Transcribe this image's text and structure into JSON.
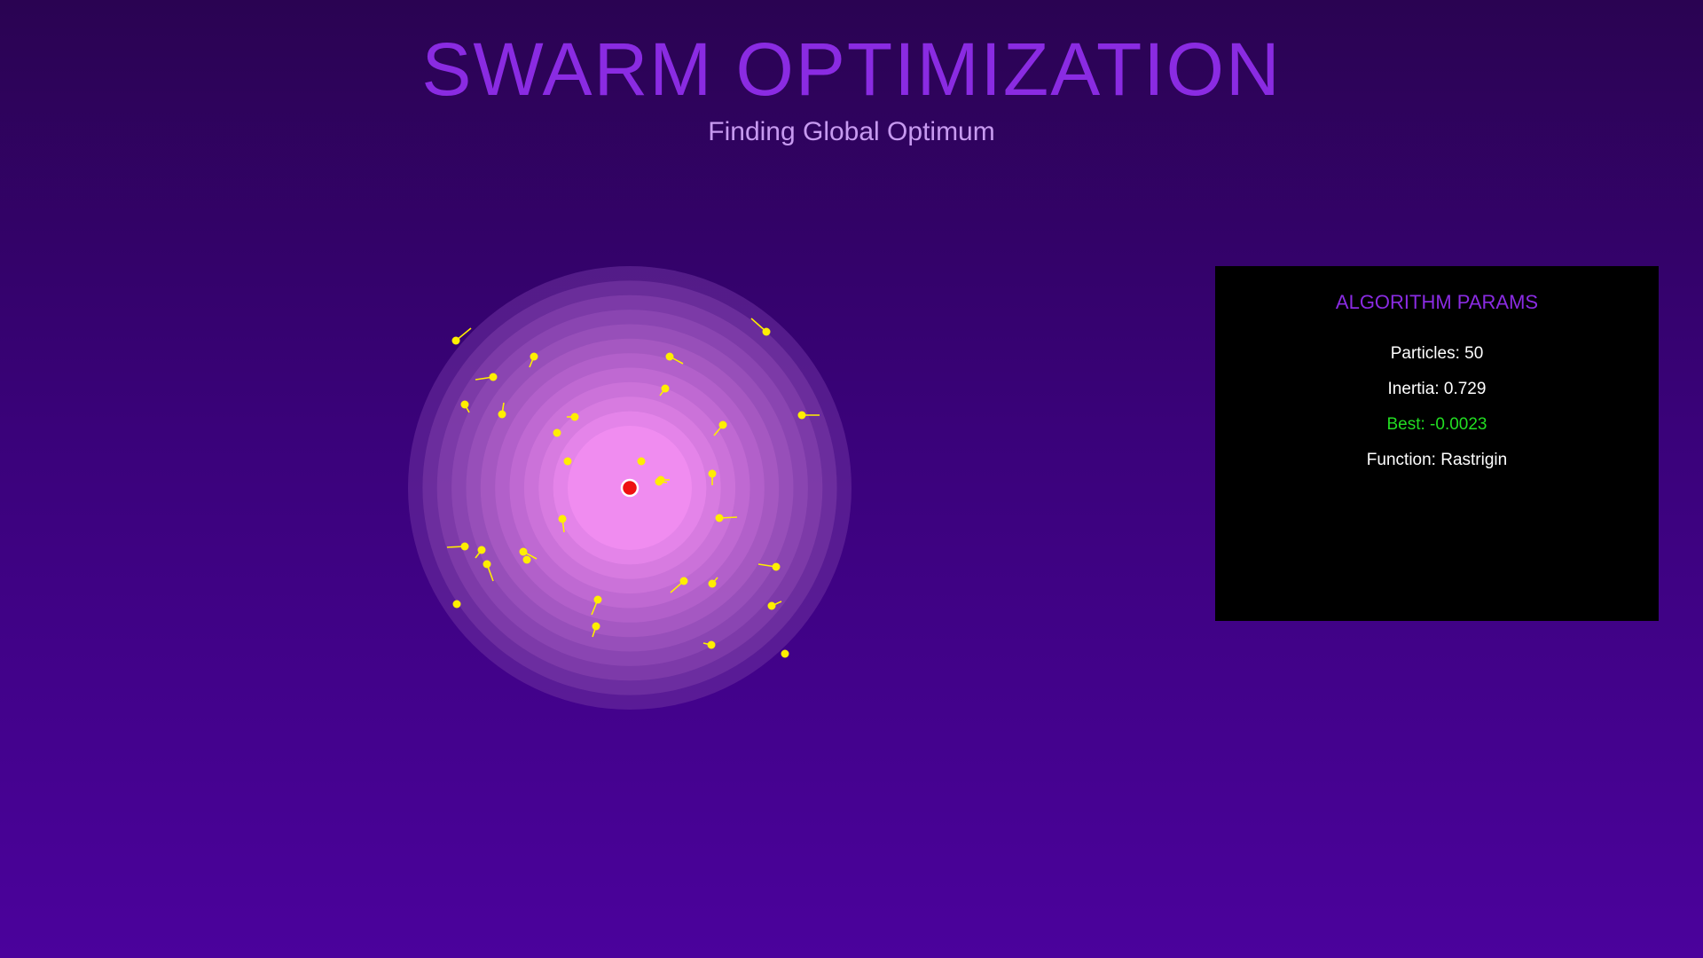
{
  "header": {
    "title": "SWARM OPTIMIZATION",
    "subtitle": "Finding Global Optimum"
  },
  "params_panel": {
    "title": "ALGORITHM PARAMS",
    "particles": "Particles: 50",
    "inertia": "Inertia: 0.729",
    "best": "Best: -0.0023",
    "function": "Function: Rastrigin"
  },
  "colors": {
    "title": "#8a2be2",
    "subtitle": "#c79af0",
    "particle": "#ffee00",
    "global_best": "#ee1111",
    "best_text": "#22dd22",
    "panel_bg": "#000000"
  },
  "visualization": {
    "landscape_rings": 12,
    "global_best_marker": "red-dot",
    "particles_shown": 33
  }
}
